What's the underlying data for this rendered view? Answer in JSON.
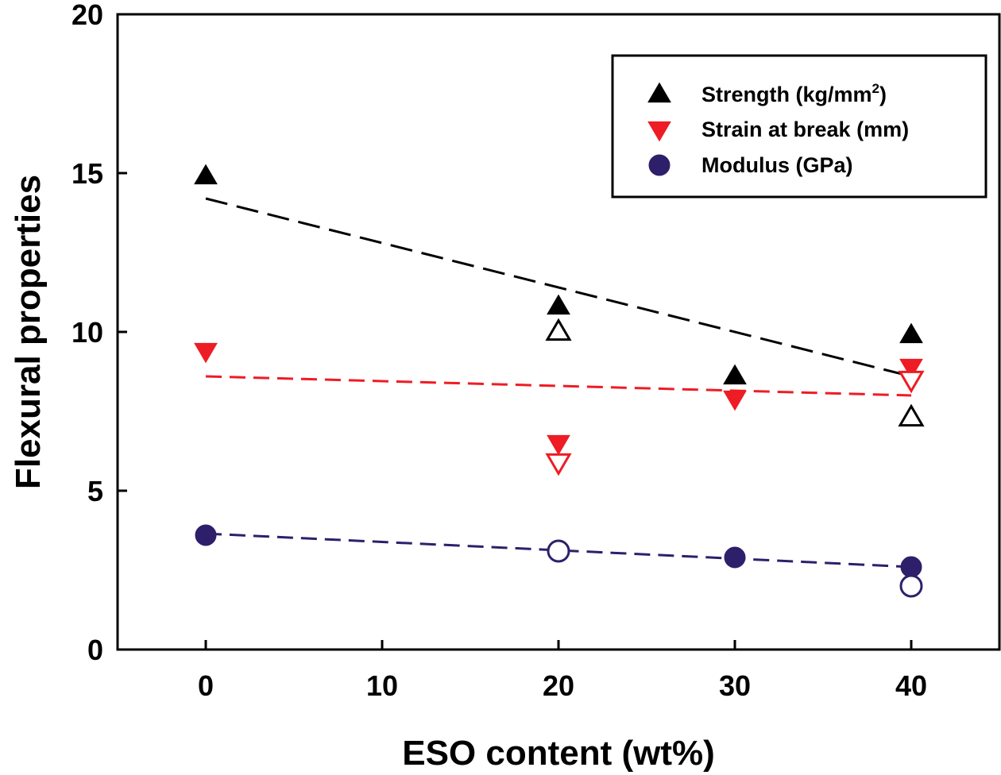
{
  "chart_data": {
    "type": "scatter",
    "xlabel": "ESO content (wt%)",
    "ylabel": "Flexural properties",
    "xlim": [
      -5,
      45
    ],
    "ylim": [
      0,
      20
    ],
    "xticks": [
      "0",
      "10",
      "20",
      "30",
      "40"
    ],
    "yticks": [
      "0",
      "5",
      "10",
      "15",
      "20"
    ],
    "grid": false,
    "legend_position": "top-right",
    "legend": [
      {
        "label": "Strength (kg/mm",
        "sup": "2",
        "tail": ")",
        "marker": "triangle-up",
        "color": "#000000"
      },
      {
        "label": "Strain at break (mm)",
        "sup": "",
        "tail": "",
        "marker": "triangle-down",
        "color": "#ee1c24"
      },
      {
        "label": "Modulus (GPa)",
        "sup": "",
        "tail": "",
        "marker": "circle",
        "color": "#2e1f6b"
      }
    ],
    "series": [
      {
        "name": "Strength (kg/mm2)",
        "marker": "triangle-up",
        "color": "#000000",
        "filled": [
          {
            "x": 0,
            "y": 14.9
          },
          {
            "x": 20,
            "y": 10.8
          },
          {
            "x": 30,
            "y": 8.6
          },
          {
            "x": 40,
            "y": 9.9
          }
        ],
        "open": [
          {
            "x": 20,
            "y": 10.0
          },
          {
            "x": 40,
            "y": 7.3
          }
        ],
        "trend": [
          {
            "x": 0,
            "y": 14.2
          },
          {
            "x": 40,
            "y": 8.6
          }
        ]
      },
      {
        "name": "Strain at break (mm)",
        "marker": "triangle-down",
        "color": "#ee1c24",
        "filled": [
          {
            "x": 0,
            "y": 9.4
          },
          {
            "x": 20,
            "y": 6.5
          },
          {
            "x": 30,
            "y": 7.9
          },
          {
            "x": 40,
            "y": 8.9
          }
        ],
        "open": [
          {
            "x": 20,
            "y": 5.9
          },
          {
            "x": 40,
            "y": 8.5
          }
        ],
        "trend": [
          {
            "x": 0,
            "y": 8.6
          },
          {
            "x": 40,
            "y": 8.0
          }
        ]
      },
      {
        "name": "Modulus (GPa)",
        "marker": "circle",
        "color": "#2e1f6b",
        "filled": [
          {
            "x": 0,
            "y": 3.6
          },
          {
            "x": 30,
            "y": 2.9
          },
          {
            "x": 40,
            "y": 2.6
          }
        ],
        "open": [
          {
            "x": 20,
            "y": 3.1
          },
          {
            "x": 40,
            "y": 2.0
          }
        ],
        "trend": [
          {
            "x": 0,
            "y": 3.65
          },
          {
            "x": 40,
            "y": 2.6
          }
        ]
      }
    ]
  }
}
